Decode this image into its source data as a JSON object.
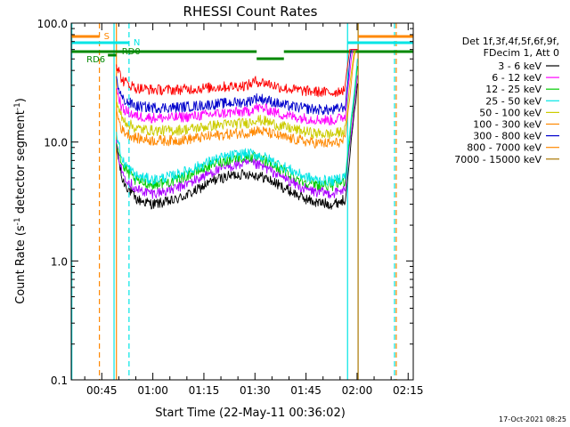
{
  "chart_data": {
    "type": "line",
    "title": "RHESSI Count Rates",
    "xlabel": "Start Time (22-May-11 00:36:02)",
    "ylabel_main": "Count Rate (s",
    "ylabel_sup1": "-1",
    "ylabel_mid": " detector segment",
    "ylabel_sup2": "-1",
    "ylabel_end": ")",
    "y_scale": "log",
    "ylim": [
      0.1,
      100
    ],
    "xlim_minutes": [
      36.03,
      136.5
    ],
    "x_ticks": [
      {
        "label": "00:45",
        "min": 45
      },
      {
        "label": "01:00",
        "min": 60
      },
      {
        "label": "01:15",
        "min": 75
      },
      {
        "label": "01:30",
        "min": 90
      },
      {
        "label": "01:45",
        "min": 105
      },
      {
        "label": "02:00",
        "min": 120
      },
      {
        "label": "02:15",
        "min": 135
      }
    ],
    "y_ticks": [
      {
        "label": "100.0",
        "v": 100
      },
      {
        "label": "10.0",
        "v": 10
      },
      {
        "label": "1.0",
        "v": 1
      },
      {
        "label": "0.1",
        "v": 0.1
      }
    ],
    "legend_header": [
      "Det 1f,3f,4f,5f,6f,9f,",
      "FDecim 1, Att 0"
    ],
    "series": [
      {
        "name": "3 - 6 keV",
        "color": "#000000",
        "points": [
          [
            49.3,
            9.0
          ],
          [
            51,
            4.8
          ],
          [
            55,
            3.3
          ],
          [
            60,
            3.0
          ],
          [
            66,
            3.2
          ],
          [
            72,
            3.8
          ],
          [
            78,
            4.8
          ],
          [
            84,
            5.3
          ],
          [
            88,
            5.4
          ],
          [
            90,
            5.3
          ],
          [
            93,
            5.0
          ],
          [
            98,
            4.2
          ],
          [
            104,
            3.4
          ],
          [
            108,
            3.1
          ],
          [
            113,
            3.0
          ],
          [
            116.5,
            3.3
          ]
        ]
      },
      {
        "name": "6 - 12 keV",
        "color": "#aa00ff",
        "points": [
          [
            49.3,
            9.5
          ],
          [
            51,
            5.5
          ],
          [
            55,
            4.0
          ],
          [
            60,
            3.7
          ],
          [
            66,
            4.0
          ],
          [
            72,
            4.7
          ],
          [
            78,
            5.7
          ],
          [
            84,
            6.4
          ],
          [
            88,
            6.6
          ],
          [
            90,
            6.5
          ],
          [
            93,
            6.1
          ],
          [
            98,
            5.1
          ],
          [
            104,
            4.1
          ],
          [
            108,
            3.8
          ],
          [
            113,
            3.7
          ],
          [
            116.5,
            4.0
          ]
        ]
      },
      {
        "name": "12 - 25 keV",
        "color": "#00cc00",
        "points": [
          [
            49.3,
            10.5
          ],
          [
            51,
            6.3
          ],
          [
            55,
            4.7
          ],
          [
            60,
            4.4
          ],
          [
            66,
            4.7
          ],
          [
            72,
            5.5
          ],
          [
            78,
            6.6
          ],
          [
            84,
            7.3
          ],
          [
            88,
            7.5
          ],
          [
            90,
            7.4
          ],
          [
            93,
            6.9
          ],
          [
            98,
            5.8
          ],
          [
            104,
            4.7
          ],
          [
            108,
            4.4
          ],
          [
            113,
            4.3
          ],
          [
            116.5,
            4.7
          ]
        ]
      },
      {
        "name": "25 - 50 keV",
        "color": "#00e5e5",
        "points": [
          [
            49.3,
            12.0
          ],
          [
            51,
            7.0
          ],
          [
            55,
            5.2
          ],
          [
            60,
            4.8
          ],
          [
            66,
            5.2
          ],
          [
            72,
            6.0
          ],
          [
            78,
            7.1
          ],
          [
            84,
            7.8
          ],
          [
            88,
            8.0
          ],
          [
            90,
            7.9
          ],
          [
            93,
            7.4
          ],
          [
            98,
            6.3
          ],
          [
            104,
            5.2
          ],
          [
            108,
            4.8
          ],
          [
            113,
            4.7
          ],
          [
            116.5,
            5.2
          ]
        ]
      },
      {
        "name": "50 - 100 keV",
        "color": "#cccc00",
        "points": [
          [
            49.3,
            22
          ],
          [
            51,
            15.5
          ],
          [
            55,
            13.0
          ],
          [
            60,
            12.5
          ],
          [
            66,
            12.5
          ],
          [
            72,
            13.0
          ],
          [
            78,
            13.8
          ],
          [
            84,
            14.3
          ],
          [
            88,
            14.5
          ],
          [
            90,
            15.5
          ],
          [
            93,
            15.0
          ],
          [
            98,
            13.5
          ],
          [
            104,
            12.3
          ],
          [
            108,
            11.8
          ],
          [
            113,
            11.6
          ],
          [
            116.5,
            12.5
          ]
        ]
      },
      {
        "name": "100 - 300 keV",
        "color": "#ff8800",
        "points": [
          [
            49.3,
            18
          ],
          [
            51,
            12.5
          ],
          [
            55,
            10.8
          ],
          [
            60,
            10.3
          ],
          [
            66,
            10.3
          ],
          [
            72,
            10.7
          ],
          [
            78,
            11.3
          ],
          [
            84,
            11.8
          ],
          [
            88,
            12.0
          ],
          [
            90,
            12.5
          ],
          [
            93,
            12.2
          ],
          [
            98,
            11.0
          ],
          [
            104,
            10.2
          ],
          [
            108,
            9.8
          ],
          [
            113,
            9.7
          ],
          [
            116.5,
            10.3
          ]
        ]
      },
      {
        "name": "300 - 800 keV",
        "color": "#0000cc",
        "points": [
          [
            49.3,
            33
          ],
          [
            51,
            23
          ],
          [
            55,
            20
          ],
          [
            60,
            19.5
          ],
          [
            66,
            19.5
          ],
          [
            72,
            20.0
          ],
          [
            78,
            20.8
          ],
          [
            84,
            21.5
          ],
          [
            88,
            21.8
          ],
          [
            90,
            23.5
          ],
          [
            93,
            22.8
          ],
          [
            98,
            20.5
          ],
          [
            104,
            19.3
          ],
          [
            108,
            18.8
          ],
          [
            113,
            18.5
          ],
          [
            116.5,
            20
          ]
        ]
      },
      {
        "name": "800 - 7000 keV",
        "color": "#ff00ff",
        "points": [
          [
            49.3,
            28
          ],
          [
            51,
            19
          ],
          [
            55,
            16.5
          ],
          [
            60,
            16.0
          ],
          [
            66,
            16.0
          ],
          [
            72,
            16.5
          ],
          [
            78,
            17.2
          ],
          [
            84,
            17.8
          ],
          [
            88,
            18.0
          ],
          [
            90,
            19.5
          ],
          [
            93,
            19.0
          ],
          [
            98,
            17.0
          ],
          [
            104,
            15.9
          ],
          [
            108,
            15.5
          ],
          [
            113,
            15.2
          ],
          [
            116.5,
            16.5
          ]
        ]
      },
      {
        "name": "7000 - 15000 keV",
        "color": "#ff0000",
        "points": [
          [
            49.3,
            45
          ],
          [
            51,
            33
          ],
          [
            55,
            28.5
          ],
          [
            60,
            27.5
          ],
          [
            66,
            27.5
          ],
          [
            72,
            28.0
          ],
          [
            78,
            28.8
          ],
          [
            84,
            29.5
          ],
          [
            88,
            30.0
          ],
          [
            90,
            32.5
          ],
          [
            93,
            31.5
          ],
          [
            98,
            28.5
          ],
          [
            104,
            27.0
          ],
          [
            108,
            26.5
          ],
          [
            113,
            26.0
          ],
          [
            116.5,
            28
          ]
        ]
      }
    ],
    "legend_colors": [
      "#000000",
      "#ff00ff",
      "#00cc00",
      "#00e5e5",
      "#cccc00",
      "#ff8800",
      "#0000cc",
      "#ff8800",
      "#aa7700"
    ],
    "attenuator_markers": [
      {
        "label": "S",
        "color": "#ff8800"
      },
      {
        "label": "N",
        "color": "#00e5e5"
      },
      {
        "label": "RD0",
        "color": "#008800"
      },
      {
        "label": "RD6",
        "color": "#008800"
      }
    ],
    "vertical_lines": [
      {
        "x_min": 36.2,
        "color": "#00e5e5",
        "style": "solid"
      },
      {
        "x_min": 44.3,
        "color": "#ff8800",
        "style": "dashed"
      },
      {
        "x_min": 49.3,
        "color": "#ff8800",
        "style": "solid"
      },
      {
        "x_min": 48.6,
        "color": "#00e5e5",
        "style": "solid"
      },
      {
        "x_min": 53.0,
        "color": "#00e5e5",
        "style": "dashed"
      },
      {
        "x_min": 117.2,
        "color": "#00e5e5",
        "style": "solid"
      },
      {
        "x_min": 120.3,
        "color": "#aa7700",
        "style": "solid"
      },
      {
        "x_min": 131.0,
        "color": "#00e5e5",
        "style": "dashed"
      },
      {
        "x_min": 131.5,
        "color": "#ff8800",
        "style": "dashed"
      }
    ],
    "footer_date": "17-Oct-2021 08:25"
  }
}
